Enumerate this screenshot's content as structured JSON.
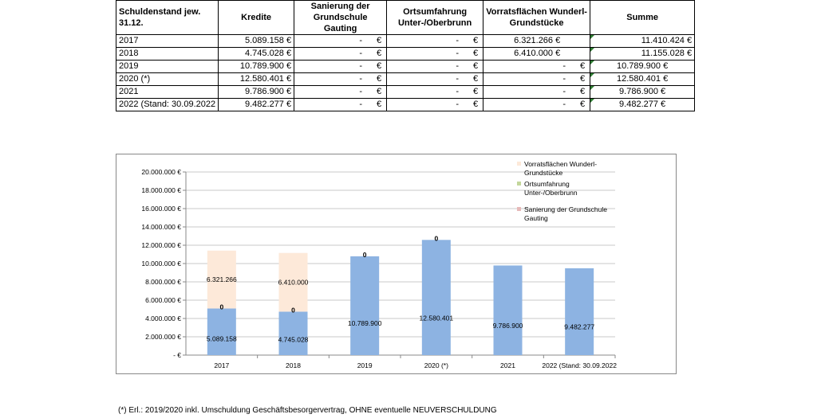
{
  "table": {
    "headers": [
      "Schuldenstand jew. 31.12.",
      "Kredite",
      "Sanierung der Grundschule Gauting",
      "Ortsumfahrung Unter-/Oberbrunn",
      "Vorratsflächen Wunderl-Grundstücke",
      "Summe"
    ],
    "dash": "-",
    "euro": "€",
    "rows": [
      {
        "year": "2017",
        "kredite": "5.089.158 €",
        "vorrat": "6.321.266 €",
        "summe": "11.410.424 €"
      },
      {
        "year": "2018",
        "kredite": "4.745.028 €",
        "vorrat": "6.410.000 €",
        "summe": "11.155.028 €"
      },
      {
        "year": "2019",
        "kredite": "10.789.900 €",
        "vorrat": "",
        "summe": "10.789.900 €"
      },
      {
        "year": "2020 (*)",
        "kredite": "12.580.401 €",
        "vorrat": "",
        "summe": "12.580.401 €"
      },
      {
        "year": "2021",
        "kredite": "9.786.900 €",
        "vorrat": "",
        "summe": "9.786.900 €"
      },
      {
        "year": "2022 (Stand: 30.09.2022",
        "kredite": "9.482.277 €",
        "vorrat": "",
        "summe": "9.482.277 €"
      }
    ]
  },
  "chart_data": {
    "type": "bar",
    "stacked": true,
    "categories": [
      "2017",
      "2018",
      "2019",
      "2020 (*)",
      "2021",
      "2022 (Stand: 30.09.2022"
    ],
    "y_tick_labels": [
      "- €",
      "2.000.000 €",
      "4.000.000 €",
      "6.000.000 €",
      "8.000.000 €",
      "10.000.000 €",
      "12.000.000 €",
      "14.000.000 €",
      "16.000.000 €",
      "18.000.000 €",
      "20.000.000 €"
    ],
    "ylim": [
      0,
      20000000
    ],
    "grid": true,
    "legend_position": "top-right",
    "series": [
      {
        "name": "",
        "color": "#8db3e2",
        "values": [
          5089158,
          4745028,
          10789900,
          12580401,
          9786900,
          9482277
        ],
        "labels": [
          "5.089.158",
          "4.745.028",
          "10.789.900",
          "12.580.401",
          "9.786.900",
          "9.482.277"
        ]
      },
      {
        "name": "Sanierung der Grundschule Gauting",
        "color": "#e6b9b8",
        "values": [
          0,
          0,
          0,
          0,
          0,
          0
        ],
        "labels": [
          "0",
          "0",
          "0",
          "0",
          "",
          ""
        ]
      },
      {
        "name": "Ortsumfahrung Unter-/Oberbrunn",
        "color": "#c3d69b",
        "values": [
          0,
          0,
          0,
          0,
          0,
          0
        ],
        "labels": [
          "",
          "",
          "",
          "",
          "",
          ""
        ]
      },
      {
        "name": "Vorratsflächen Wunderl-Grundstücke",
        "color": "#fde9d9",
        "values": [
          6321266,
          6410000,
          0,
          0,
          0,
          0
        ],
        "labels": [
          "6.321.266",
          "6.410.000",
          "",
          "",
          "",
          ""
        ]
      }
    ]
  },
  "legend": [
    {
      "label": "Vorratsflächen Wunderl-Grundstücke",
      "color": "#fde9d9"
    },
    {
      "label": "Ortsumfahrung Unter-/Oberbrunn",
      "color": "#c3d69b"
    },
    {
      "label": "Sanierung der Grundschule Gauting",
      "color": "#e6b9b8"
    }
  ],
  "footnote": "(*) Erl.: 2019/2020 inkl. Umschuldung Geschäftsbesorgervertrag, OHNE eventuelle NEUVERSCHULDUNG"
}
